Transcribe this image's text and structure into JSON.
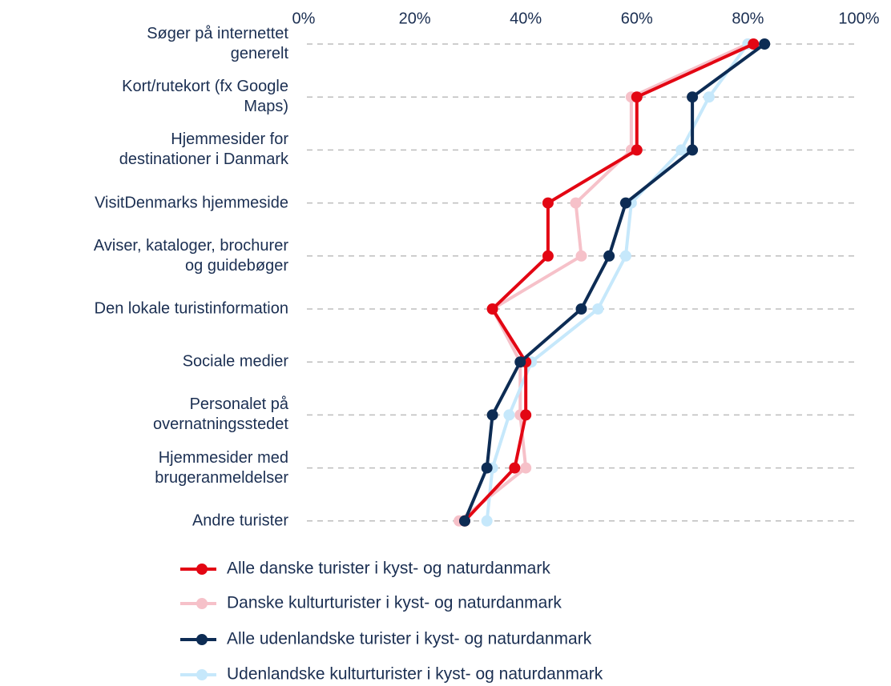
{
  "chart_data": {
    "type": "line",
    "orientation": "horizontal",
    "categories": [
      "Søger på internettet\ngenerelt",
      "Kort/rutekort (fx Google\nMaps)",
      "Hjemmesider for\ndestinationer i Danmark",
      "VisitDenmarks hjemmeside",
      "Aviser, kataloger, brochurer\nog guidebøger",
      "Den lokale turistinformation",
      "Sociale medier",
      "Personalet på\novernatningsstedet",
      "Hjemmesider med\nbrugeranmeldelser",
      "Andre turister"
    ],
    "series": [
      {
        "name": "Alle danske turister i kyst- og naturdanmark",
        "color": "#e30613",
        "values": [
          81,
          60,
          60,
          44,
          44,
          34,
          40,
          40,
          38,
          29
        ]
      },
      {
        "name": "Danske kulturturister i kyst- og naturdanmark",
        "color": "#f6c1c9",
        "values": [
          80,
          59,
          59,
          49,
          50,
          34,
          39,
          39,
          40,
          28
        ]
      },
      {
        "name": "Alle udenlandske turister i kyst- og naturdanmark",
        "color": "#0d2c54",
        "values": [
          83,
          70,
          70,
          58,
          55,
          50,
          39,
          34,
          33,
          29
        ]
      },
      {
        "name": "Udenlandske kulturturister i kyst- og naturdanmark",
        "color": "#c6e8fb",
        "values": [
          80,
          73,
          68,
          59,
          58,
          53,
          41,
          37,
          34,
          33
        ]
      }
    ],
    "xlim": [
      0,
      100
    ],
    "xticks": [
      {
        "value": 0,
        "label": "0%"
      },
      {
        "value": 20,
        "label": "20%"
      },
      {
        "value": 40,
        "label": "40%"
      },
      {
        "value": 60,
        "label": "60%"
      },
      {
        "value": 80,
        "label": "80%"
      },
      {
        "value": 100,
        "label": "100%"
      }
    ],
    "grid": true,
    "legend": "bottom"
  }
}
